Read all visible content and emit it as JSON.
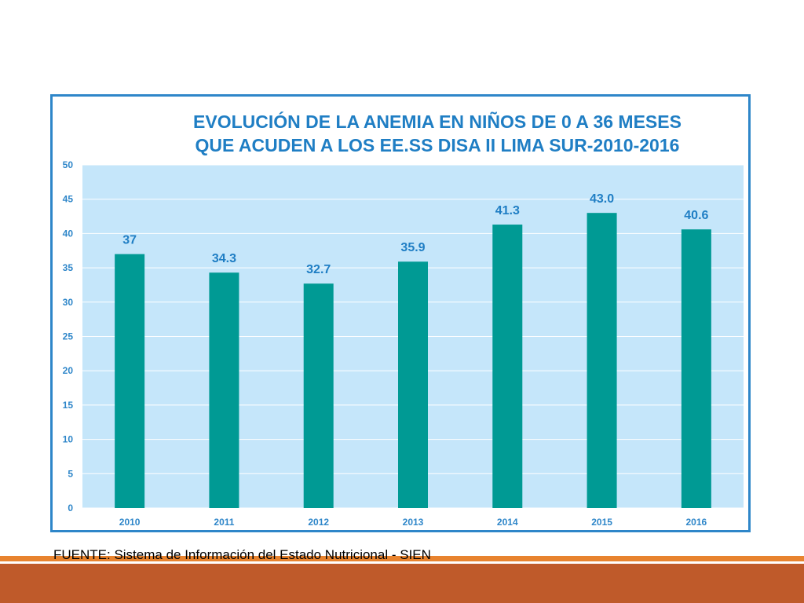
{
  "colors": {
    "bar": "#009a94",
    "plot_background": "#c5e6fa",
    "gridline": "#ffffff",
    "title": "#1f7ec4",
    "frame": "#2e86c9",
    "stripe_light": "#e8832e",
    "stripe_dark": "#bf5a2a"
  },
  "chart_data": {
    "type": "bar",
    "title_line1": "EVOLUCIÓN DE LA ANEMIA EN NIÑOS DE 0 A 36 MESES",
    "title_line2": "QUE ACUDEN A LOS EE.SS DISA II LIMA SUR-2010-2016",
    "categories": [
      "2010",
      "2011",
      "2012",
      "2013",
      "2014",
      "2015",
      "2016"
    ],
    "values": [
      37,
      34.3,
      32.7,
      35.9,
      41.3,
      43.0,
      40.6
    ],
    "value_labels": [
      "37",
      "34.3",
      "32.7",
      "35.9",
      "41.3",
      "43.0",
      "40.6"
    ],
    "yticks": [
      "0",
      "5",
      "10",
      "15",
      "20",
      "25",
      "30",
      "35",
      "40",
      "45",
      "50"
    ],
    "ylim": [
      0,
      50
    ],
    "grid": true,
    "legend": "none",
    "xlabel": "",
    "ylabel": ""
  },
  "footer": {
    "source": "FUENTE: Sistema de Información del Estado Nutricional - SIEN"
  }
}
